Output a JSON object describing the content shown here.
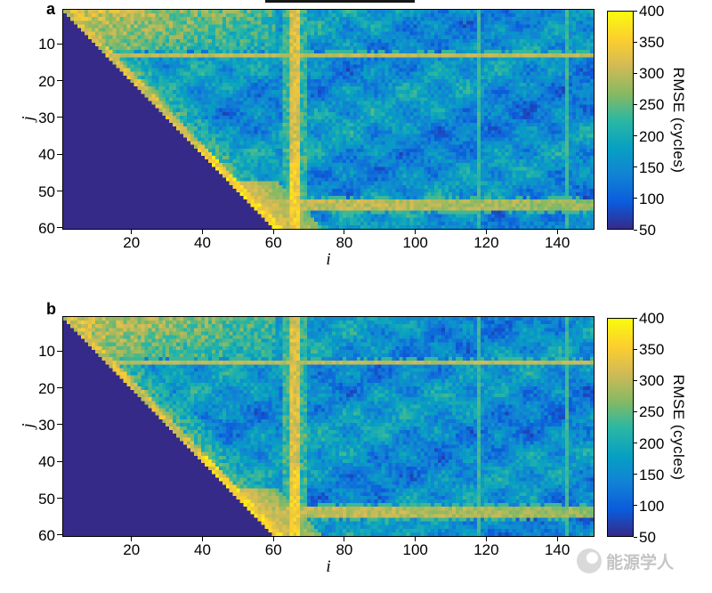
{
  "figure": {
    "type": "two-panel RMSE heatmap figure",
    "background": "#ffffff"
  },
  "watermark": {
    "text": "能源学人",
    "icon": "energist-logo-icon",
    "color": "#c4c4c4"
  },
  "chart_data": [
    {
      "type": "heatmap",
      "panel_label": "a",
      "x": {
        "label": "i",
        "range": [
          1,
          150
        ],
        "ticks": [
          20,
          40,
          60,
          80,
          100,
          120,
          140
        ]
      },
      "y": {
        "label": "j",
        "range": [
          1,
          60
        ],
        "ticks": [
          10,
          20,
          30,
          40,
          50,
          60
        ],
        "direction": "down"
      },
      "colorbar": {
        "label": "RMSE (cycles)",
        "min": 50,
        "max": 400,
        "ticks": [
          50,
          100,
          150,
          200,
          250,
          300,
          350,
          400
        ],
        "colormap": "parula",
        "stops": [
          {
            "t": 0.0,
            "color": "#352a87"
          },
          {
            "t": 0.12,
            "color": "#0c5bdc"
          },
          {
            "t": 0.25,
            "color": "#1283d4"
          },
          {
            "t": 0.37,
            "color": "#07a0c2"
          },
          {
            "t": 0.5,
            "color": "#2cb7a2"
          },
          {
            "t": 0.62,
            "color": "#86b963"
          },
          {
            "t": 0.75,
            "color": "#d2ba56"
          },
          {
            "t": 0.87,
            "color": "#fcce2f"
          },
          {
            "t": 1.0,
            "color": "#f9fb0e"
          }
        ]
      },
      "grid": {
        "cols": 150,
        "rows": 60
      },
      "seed": 1,
      "features": {
        "masked_value": 50,
        "masked_region": "cells with i < j form a dark lower-left triangle (minimum of scale)",
        "baseline": 160,
        "noise_amp": 70,
        "blotch_amp": 36,
        "diagonal_fringe": {
          "value": 315,
          "width": 3
        },
        "top_left_block": {
          "value": 330,
          "i_max": 60,
          "j_max": 11
        },
        "hot_row": {
          "j": 13,
          "value": 300
        },
        "hot_column": {
          "i": 66,
          "value": 320
        },
        "bottom_hot_band": {
          "j_from": 53,
          "j_to": 55,
          "i_start": 58,
          "value": 300
        },
        "corner_blob": {
          "near": [
            62,
            55
          ],
          "value": 340
        },
        "teal_columns": [
          118,
          143
        ],
        "teal_value": 230
      }
    },
    {
      "type": "heatmap",
      "panel_label": "b",
      "x": {
        "label": "i",
        "range": [
          1,
          150
        ],
        "ticks": [
          20,
          40,
          60,
          80,
          100,
          120,
          140
        ]
      },
      "y": {
        "label": "j",
        "range": [
          1,
          60
        ],
        "ticks": [
          10,
          20,
          30,
          40,
          50,
          60
        ],
        "direction": "down"
      },
      "colorbar": {
        "label": "RMSE (cycles)",
        "min": 50,
        "max": 400,
        "ticks": [
          50,
          100,
          150,
          200,
          250,
          300,
          350,
          400
        ],
        "colormap": "parula",
        "stops": [
          {
            "t": 0.0,
            "color": "#352a87"
          },
          {
            "t": 0.12,
            "color": "#0c5bdc"
          },
          {
            "t": 0.25,
            "color": "#1283d4"
          },
          {
            "t": 0.37,
            "color": "#07a0c2"
          },
          {
            "t": 0.5,
            "color": "#2cb7a2"
          },
          {
            "t": 0.62,
            "color": "#86b963"
          },
          {
            "t": 0.75,
            "color": "#d2ba56"
          },
          {
            "t": 0.87,
            "color": "#fcce2f"
          },
          {
            "t": 1.0,
            "color": "#f9fb0e"
          }
        ]
      },
      "grid": {
        "cols": 150,
        "rows": 60
      },
      "seed": 7,
      "features": {
        "masked_value": 50,
        "masked_region": "cells with i < j form a dark lower-left triangle (minimum of scale)",
        "baseline": 160,
        "noise_amp": 70,
        "blotch_amp": 36,
        "diagonal_fringe": {
          "value": 315,
          "width": 3
        },
        "top_left_block": {
          "value": 330,
          "i_max": 60,
          "j_max": 11
        },
        "hot_row": {
          "j": 13,
          "value": 300
        },
        "hot_column": {
          "i": 66,
          "value": 320
        },
        "bottom_hot_band": {
          "j_from": 53,
          "j_to": 55,
          "i_start": 58,
          "value": 300
        },
        "corner_blob": {
          "near": [
            62,
            55
          ],
          "value": 340
        },
        "teal_columns": [
          118,
          143
        ],
        "teal_value": 230
      }
    }
  ]
}
